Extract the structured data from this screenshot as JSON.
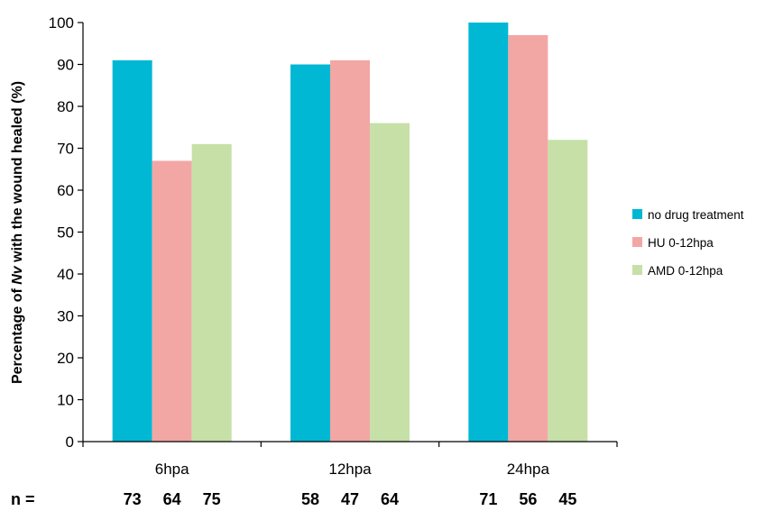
{
  "chart_data": {
    "type": "bar",
    "categories": [
      "6hpa",
      "12hpa",
      "24hpa"
    ],
    "series": [
      {
        "name": "no drug treatment",
        "values": [
          91,
          90,
          100
        ],
        "color": "#00b8d4"
      },
      {
        "name": "HU 0-12hpa",
        "values": [
          67,
          91,
          97
        ],
        "color": "#f2a7a5"
      },
      {
        "name": "AMD 0-12hpa",
        "values": [
          71,
          76,
          72
        ],
        "color": "#c6e0a8"
      }
    ],
    "ylabel_prefix": "Percentage of ",
    "ylabel_italic": "Nv",
    "ylabel_suffix": " with the wound healed (%)",
    "ylim": [
      0,
      100
    ],
    "yticks": [
      0,
      10,
      20,
      30,
      40,
      50,
      60,
      70,
      80,
      90,
      100
    ],
    "grid": false,
    "legend_position": "right",
    "n_label": "n =",
    "n_values": [
      [
        73,
        64,
        75
      ],
      [
        58,
        47,
        64
      ],
      [
        71,
        56,
        45
      ]
    ]
  }
}
